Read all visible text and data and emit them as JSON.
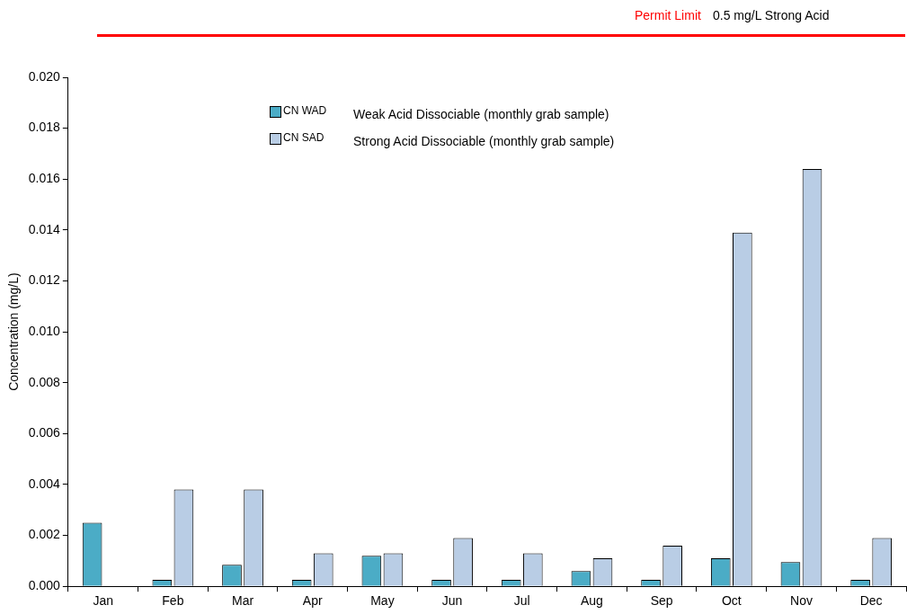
{
  "chart_data": {
    "type": "bar",
    "ylabel": "Concentration (mg/L)",
    "categories": [
      "Jan",
      "Feb",
      "Mar",
      "Apr",
      "May",
      "Jun",
      "Jul",
      "Aug",
      "Sep",
      "Oct",
      "Nov",
      "Dec"
    ],
    "series": [
      {
        "name": "CN WAD",
        "color": "#4bacc6",
        "values": [
          0.0025,
          0.00025,
          0.00085,
          0.00025,
          0.0012,
          0.00025,
          0.00025,
          0.0006,
          0.00025,
          0.0011,
          0.00095,
          0.00025
        ]
      },
      {
        "name": "CN SAD",
        "color": "#b9cde5",
        "values": [
          null,
          0.0038,
          0.0038,
          0.0013,
          0.0013,
          0.0019,
          0.0013,
          0.0011,
          0.0016,
          0.0139,
          0.0164,
          0.0019
        ]
      }
    ],
    "ylim": [
      0,
      0.02
    ],
    "yticks": [
      {
        "value": 0,
        "label": "0.000"
      },
      {
        "value": 0.002,
        "label": "0.002"
      },
      {
        "value": 0.004,
        "label": "0.004"
      },
      {
        "value": 0.006,
        "label": "0.006"
      },
      {
        "value": 0.008,
        "label": "0.008"
      },
      {
        "value": 0.01,
        "label": "0.010"
      },
      {
        "value": 0.012,
        "label": "0.012"
      },
      {
        "value": 0.014,
        "label": "0.014"
      },
      {
        "value": 0.016,
        "label": "0.016"
      },
      {
        "value": 0.018,
        "label": "0.018"
      },
      {
        "value": 0.02,
        "label": "0.020"
      }
    ],
    "grid": false,
    "legend": "top",
    "annotations": [
      "Permit Limit",
      "0.5 mg/L Strong Acid",
      "Weak Acid Dissociable (monthly grab sample)",
      "Strong Acid Dissociable (monthly grab sample)"
    ]
  }
}
